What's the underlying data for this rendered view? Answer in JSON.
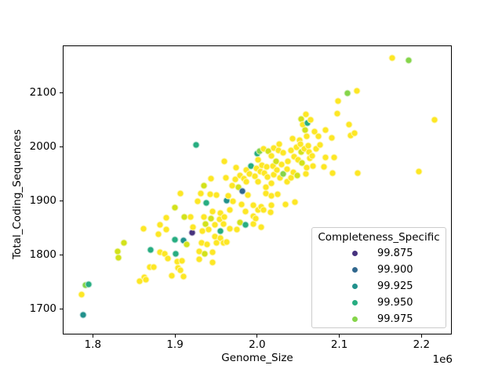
{
  "figure": {
    "xlabel": "Genome_Size",
    "ylabel": "Total_Coding_Sequences",
    "x_offset_text": "1e6"
  },
  "legend": {
    "title": "Completeness_Specific",
    "entries": [
      {
        "label": "99.875",
        "color": "#46327e"
      },
      {
        "label": "99.900",
        "color": "#31688e"
      },
      {
        "label": "99.925",
        "color": "#21918c"
      },
      {
        "label": "99.950",
        "color": "#27ad81"
      },
      {
        "label": "99.975",
        "color": "#85d54a"
      }
    ]
  },
  "chart_data": {
    "type": "scatter",
    "title": "",
    "xlabel": "Genome_Size",
    "ylabel": "Total_Coding_Sequences",
    "x_offset_text": "1e6",
    "x_unit_multiplier": 1000000,
    "xlim": [
      1.7634,
      2.2369
    ],
    "ylim": [
      1652.6,
      2187.4
    ],
    "x_ticks": [
      1.8,
      1.9,
      2.0,
      2.1,
      2.2
    ],
    "x_tick_labels": [
      "1.8",
      "1.9",
      "2.0",
      "2.1",
      "2.2"
    ],
    "y_ticks": [
      1700,
      1800,
      1900,
      2000,
      2100
    ],
    "y_tick_labels": [
      "1700",
      "1800",
      "1900",
      "2000",
      "2100"
    ],
    "grid": false,
    "legend_position": "lower right",
    "hue_name": "Completeness_Specific",
    "hue_colors": {
      "99.875": "#46327e",
      "99.900": "#31688e",
      "99.925": "#21918c",
      "99.950": "#27ad81",
      "99.975": "#85d54a",
      "99.985": "#d2e21b",
      "99.995": "#fde725"
    },
    "points": [
      [
        1.787,
        1690,
        99.925
      ],
      [
        1.785,
        1728,
        99.995
      ],
      [
        1.79,
        1745,
        99.975
      ],
      [
        1.794,
        1747,
        99.95
      ],
      [
        1.829,
        1808,
        99.985
      ],
      [
        1.83,
        1796,
        99.985
      ],
      [
        1.837,
        1824,
        99.985
      ],
      [
        1.856,
        1753,
        99.995
      ],
      [
        1.861,
        1850,
        99.995
      ],
      [
        1.862,
        1760,
        99.995
      ],
      [
        1.864,
        1755,
        99.995
      ],
      [
        1.868,
        1779,
        99.995
      ],
      [
        1.869,
        1811,
        99.95
      ],
      [
        1.873,
        1779,
        99.995
      ],
      [
        1.879,
        1840,
        99.995
      ],
      [
        1.881,
        1806,
        99.995
      ],
      [
        1.881,
        1857,
        99.995
      ],
      [
        1.887,
        1804,
        99.995
      ],
      [
        1.888,
        1848,
        99.995
      ],
      [
        1.888,
        1870,
        99.995
      ],
      [
        1.89,
        1794,
        99.995
      ],
      [
        1.895,
        1763,
        99.995
      ],
      [
        1.899,
        1889,
        99.985
      ],
      [
        1.899,
        1830,
        99.95
      ],
      [
        1.9,
        1803,
        99.95
      ],
      [
        1.902,
        1789,
        99.995
      ],
      [
        1.903,
        1777,
        99.995
      ],
      [
        1.906,
        1773,
        99.995
      ],
      [
        1.906,
        1915,
        99.995
      ],
      [
        1.908,
        1791,
        99.995
      ],
      [
        1.909,
        1762,
        99.995
      ],
      [
        1.909,
        1828,
        99.925
      ],
      [
        1.91,
        1871,
        99.985
      ],
      [
        1.913,
        1820,
        99.985
      ],
      [
        1.918,
        1871,
        99.995
      ],
      [
        1.92,
        1843,
        99.875
      ],
      [
        1.921,
        1852,
        99.995
      ],
      [
        1.925,
        2005,
        99.95
      ],
      [
        1.927,
        1900,
        99.995
      ],
      [
        1.929,
        1808,
        99.995
      ],
      [
        1.929,
        1793,
        99.995
      ],
      [
        1.93,
        1915,
        99.995
      ],
      [
        1.931,
        1823,
        99.995
      ],
      [
        1.932,
        1846,
        99.995
      ],
      [
        1.934,
        1871,
        99.995
      ],
      [
        1.934,
        1929,
        99.985
      ],
      [
        1.935,
        1804,
        99.985
      ],
      [
        1.936,
        1859,
        99.985
      ],
      [
        1.937,
        1898,
        99.95
      ],
      [
        1.938,
        1820,
        99.995
      ],
      [
        1.94,
        1848,
        99.995
      ],
      [
        1.942,
        1914,
        99.995
      ],
      [
        1.943,
        1942,
        99.995
      ],
      [
        1.943,
        1869,
        99.985
      ],
      [
        1.945,
        1882,
        99.995
      ],
      [
        1.945,
        1806,
        99.995
      ],
      [
        1.945,
        1788,
        99.995
      ],
      [
        1.948,
        1857,
        99.995
      ],
      [
        1.948,
        1835,
        99.995
      ],
      [
        1.95,
        1912,
        99.995
      ],
      [
        1.95,
        1823,
        99.995
      ],
      [
        1.953,
        1867,
        99.995
      ],
      [
        1.954,
        1878,
        99.995
      ],
      [
        1.954,
        1846,
        99.95
      ],
      [
        1.954,
        1833,
        99.995
      ],
      [
        1.958,
        1859,
        99.995
      ],
      [
        1.958,
        1823,
        99.995
      ],
      [
        1.959,
        1975,
        99.995
      ],
      [
        1.959,
        1871,
        99.995
      ],
      [
        1.961,
        1944,
        99.995
      ],
      [
        1.962,
        1902,
        99.925
      ],
      [
        1.962,
        1825,
        99.995
      ],
      [
        1.964,
        1911,
        99.995
      ],
      [
        1.966,
        1885,
        99.995
      ],
      [
        1.966,
        1849,
        99.995
      ],
      [
        1.969,
        1930,
        99.995
      ],
      [
        1.97,
        1900,
        99.995
      ],
      [
        1.972,
        1941,
        99.995
      ],
      [
        1.973,
        1963,
        99.995
      ],
      [
        1.974,
        1848,
        99.995
      ],
      [
        1.976,
        1926,
        99.985
      ],
      [
        1.978,
        1948,
        99.995
      ],
      [
        1.978,
        1862,
        99.985
      ],
      [
        1.98,
        1895,
        99.995
      ],
      [
        1.981,
        1920,
        99.9
      ],
      [
        1.983,
        1943,
        99.995
      ],
      [
        1.985,
        1881,
        99.995
      ],
      [
        1.985,
        1857,
        99.95
      ],
      [
        1.986,
        1958,
        99.995
      ],
      [
        1.986,
        1936,
        99.995
      ],
      [
        1.988,
        1912,
        99.995
      ],
      [
        1.99,
        1951,
        99.995
      ],
      [
        1.992,
        1966,
        99.95
      ],
      [
        1.994,
        1893,
        99.995
      ],
      [
        1.994,
        1873,
        99.995
      ],
      [
        1.994,
        1859,
        99.995
      ],
      [
        1.996,
        1947,
        99.995
      ],
      [
        1.997,
        1869,
        99.995
      ],
      [
        1.998,
        1962,
        99.995
      ],
      [
        1.999,
        1989,
        99.95
      ],
      [
        2.0,
        1977,
        99.995
      ],
      [
        2.0,
        1936,
        99.995
      ],
      [
        2.0,
        1885,
        99.995
      ],
      [
        2.002,
        1993,
        99.975
      ],
      [
        2.003,
        1956,
        99.995
      ],
      [
        2.004,
        1890,
        99.995
      ],
      [
        2.004,
        1852,
        99.995
      ],
      [
        2.005,
        1967,
        99.995
      ],
      [
        2.007,
        1998,
        99.995
      ],
      [
        2.007,
        1885,
        99.995
      ],
      [
        2.008,
        1952,
        99.995
      ],
      [
        2.01,
        1927,
        99.995
      ],
      [
        2.01,
        1915,
        99.995
      ],
      [
        2.011,
        1964,
        99.995
      ],
      [
        2.012,
        1945,
        99.995
      ],
      [
        2.013,
        1993,
        99.985
      ],
      [
        2.015,
        1880,
        99.995
      ],
      [
        2.016,
        1985,
        99.995
      ],
      [
        2.016,
        1934,
        99.995
      ],
      [
        2.016,
        1911,
        99.995
      ],
      [
        2.016,
        1893,
        99.995
      ],
      [
        2.018,
        1966,
        99.995
      ],
      [
        2.019,
        1999,
        99.995
      ],
      [
        2.019,
        1950,
        99.995
      ],
      [
        2.022,
        1974,
        99.985
      ],
      [
        2.023,
        1958,
        99.995
      ],
      [
        2.024,
        1914,
        99.995
      ],
      [
        2.025,
        1995,
        99.995
      ],
      [
        2.026,
        2006,
        99.995
      ],
      [
        2.027,
        1944,
        99.995
      ],
      [
        2.029,
        1969,
        99.995
      ],
      [
        2.031,
        1990,
        99.995
      ],
      [
        2.031,
        1951,
        99.975
      ],
      [
        2.034,
        1895,
        99.995
      ],
      [
        2.035,
        1960,
        99.995
      ],
      [
        2.035,
        1936,
        99.995
      ],
      [
        2.036,
        1974,
        99.995
      ],
      [
        2.04,
        1994,
        99.995
      ],
      [
        2.04,
        1944,
        99.995
      ],
      [
        2.042,
        2016,
        99.995
      ],
      [
        2.043,
        1954,
        99.995
      ],
      [
        2.044,
        1983,
        99.995
      ],
      [
        2.045,
        1899,
        99.995
      ],
      [
        2.047,
        2001,
        99.995
      ],
      [
        2.048,
        1948,
        99.985
      ],
      [
        2.049,
        1977,
        99.995
      ],
      [
        2.051,
        2014,
        99.995
      ],
      [
        2.052,
        2006,
        99.995
      ],
      [
        2.053,
        2052,
        99.985
      ],
      [
        2.053,
        1992,
        99.985
      ],
      [
        2.054,
        1972,
        99.985
      ],
      [
        2.055,
        2042,
        99.995
      ],
      [
        2.056,
        1998,
        99.995
      ],
      [
        2.057,
        2033,
        99.985
      ],
      [
        2.058,
        2062,
        99.995
      ],
      [
        2.058,
        1951,
        99.995
      ],
      [
        2.059,
        2021,
        99.995
      ],
      [
        2.059,
        1963,
        99.995
      ],
      [
        2.06,
        2046,
        99.95
      ],
      [
        2.061,
        2004,
        99.995
      ],
      [
        2.062,
        1992,
        99.995
      ],
      [
        2.063,
        1980,
        99.995
      ],
      [
        2.064,
        2051,
        99.995
      ],
      [
        2.066,
        1985,
        99.995
      ],
      [
        2.067,
        1965,
        99.995
      ],
      [
        2.069,
        2030,
        99.995
      ],
      [
        2.071,
        1998,
        99.995
      ],
      [
        2.074,
        2021,
        99.995
      ],
      [
        2.076,
        2005,
        99.995
      ],
      [
        2.08,
        1964,
        99.995
      ],
      [
        2.082,
        2033,
        99.995
      ],
      [
        2.082,
        1981,
        99.995
      ],
      [
        2.09,
        2018,
        99.995
      ],
      [
        2.091,
        1952,
        99.995
      ],
      [
        2.093,
        1981,
        99.995
      ],
      [
        2.097,
        2063,
        99.995
      ],
      [
        2.098,
        2086,
        99.995
      ],
      [
        2.109,
        2101,
        99.975
      ],
      [
        2.111,
        2042,
        99.995
      ],
      [
        2.113,
        2022,
        99.995
      ],
      [
        2.118,
        2026,
        99.995
      ],
      [
        2.12,
        2105,
        99.995
      ],
      [
        2.121,
        1952,
        99.995
      ],
      [
        2.163,
        2165,
        99.995
      ],
      [
        2.183,
        2162,
        99.975
      ],
      [
        2.196,
        1956,
        99.995
      ],
      [
        2.215,
        2051,
        99.995
      ]
    ]
  }
}
